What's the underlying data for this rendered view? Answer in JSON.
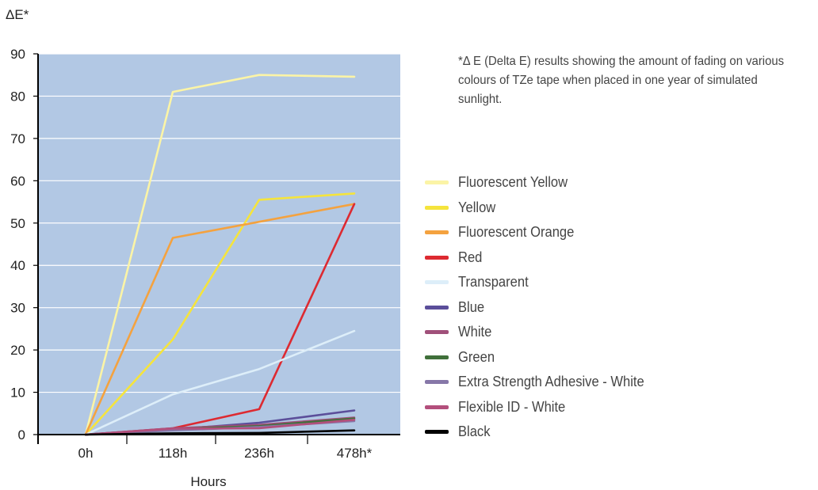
{
  "chart_data": {
    "type": "line",
    "ylabel": "ΔE*",
    "xlabel": "Hours",
    "x": [
      "0h",
      "118h",
      "236h",
      "478h*"
    ],
    "ylim": [
      0,
      90
    ],
    "yticks": [
      0,
      10,
      20,
      30,
      40,
      50,
      60,
      70,
      80,
      90
    ],
    "grid": true,
    "background": "#b2c8e4",
    "note": "*Δ E (Delta E) results showing the amount of fading on various colours of TZe tape when placed in one year of simulated sunlight.",
    "legend_position": "right",
    "series": [
      {
        "name": "Fluorescent Yellow",
        "color": "#fbf4a6",
        "values": [
          0,
          81,
          85,
          84.6
        ]
      },
      {
        "name": "Yellow",
        "color": "#f5e43c",
        "values": [
          0,
          22.5,
          55.5,
          57
        ]
      },
      {
        "name": "Fluorescent Orange",
        "color": "#f4a23f",
        "values": [
          0,
          46.5,
          50.3,
          54.5
        ]
      },
      {
        "name": "Red",
        "color": "#dd2a31",
        "values": [
          0,
          1.5,
          6,
          54.5
        ]
      },
      {
        "name": "Transparent",
        "color": "#ddeef9",
        "values": [
          0,
          9.5,
          15.5,
          24.5
        ]
      },
      {
        "name": "Blue",
        "color": "#5b4e9a",
        "values": [
          0,
          1.2,
          2.8,
          5.7
        ]
      },
      {
        "name": "White",
        "color": "#a0507a",
        "values": [
          0,
          1.5,
          2.3,
          4
        ]
      },
      {
        "name": "Green",
        "color": "#40703a",
        "values": [
          0,
          1.3,
          2,
          3.8
        ]
      },
      {
        "name": "Extra Strength Adhesive - White",
        "color": "#8677a8",
        "values": [
          0,
          1,
          1.8,
          3.2
        ]
      },
      {
        "name": "Flexible ID - White",
        "color": "#b34f7c",
        "values": [
          0,
          1.4,
          1.5,
          3.5
        ]
      },
      {
        "name": "Black",
        "color": "#000000",
        "values": [
          0,
          0.3,
          0.4,
          1
        ]
      }
    ]
  }
}
